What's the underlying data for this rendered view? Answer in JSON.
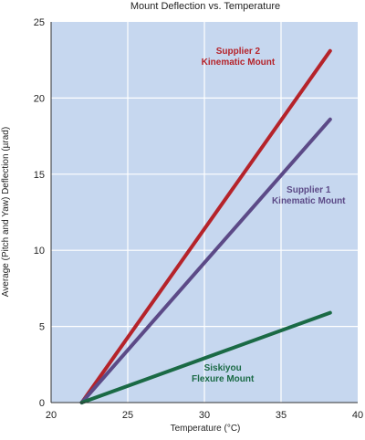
{
  "chart_data": {
    "type": "line",
    "title": "Mount Deflection vs. Temperature",
    "xlabel": "Temperature (°C)",
    "ylabel": "Average (Pitch and Yaw) Deflection (µrad)",
    "xlim": [
      20,
      40
    ],
    "ylim": [
      0,
      25
    ],
    "x_ticks": [
      "20",
      "25",
      "30",
      "35",
      "40"
    ],
    "y_ticks": [
      "0",
      "5",
      "10",
      "15",
      "20",
      "25"
    ],
    "grid": true,
    "plot_background": "#c6d7ef",
    "series": [
      {
        "name": "Supplier 2 Kinematic Mount",
        "label_lines": [
          "Supplier 2",
          "Kinematic Mount"
        ],
        "color": "#b5232a",
        "x": [
          22,
          38.2
        ],
        "y": [
          0,
          23.1
        ]
      },
      {
        "name": "Supplier 1 Kinematic Mount",
        "label_lines": [
          "Supplier 1",
          "Kinematic Mount"
        ],
        "color": "#5c4a87",
        "x": [
          22,
          38.2
        ],
        "y": [
          0,
          18.6
        ]
      },
      {
        "name": "Siskiyou Flexure Mount",
        "label_lines": [
          "Siskiyou",
          "Flexure Mount"
        ],
        "color": "#1a6a45",
        "x": [
          22,
          38.2
        ],
        "y": [
          0,
          5.9
        ]
      }
    ]
  }
}
